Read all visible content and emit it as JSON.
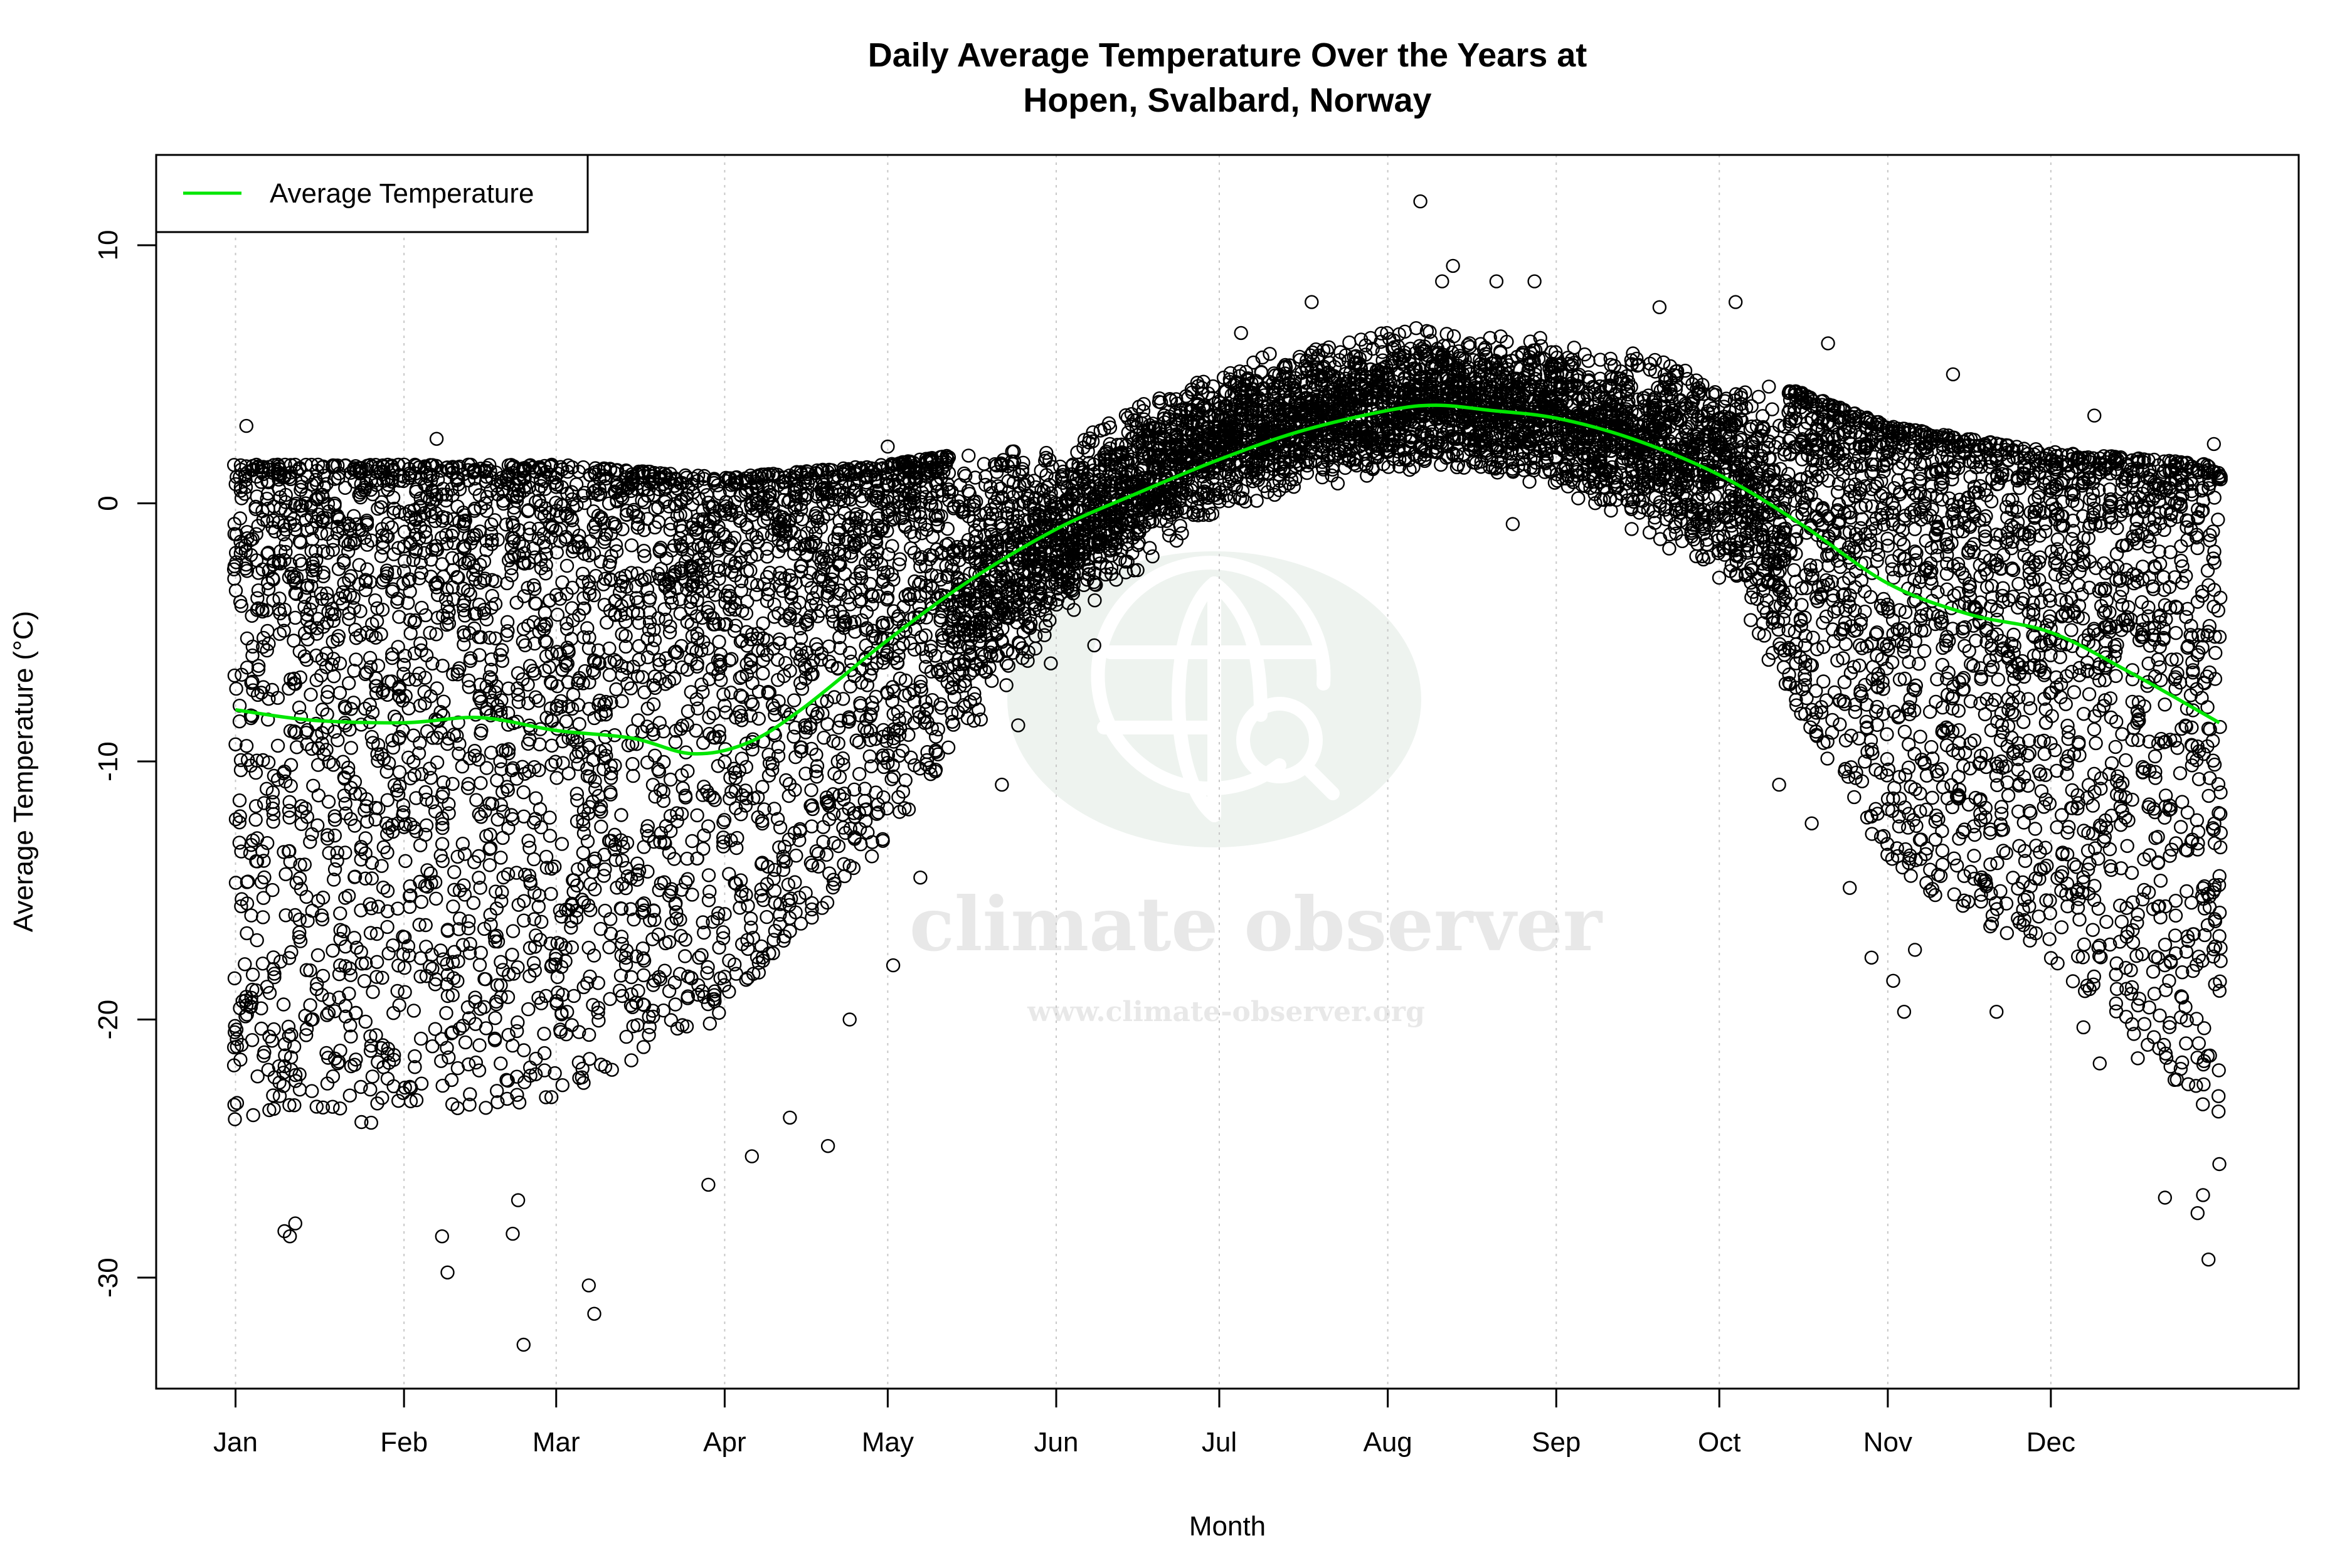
{
  "chart_data": {
    "type": "scatter",
    "title": "Daily Average Temperature Over the Years at",
    "subtitle": "Hopen, Svalbard, Norway",
    "xlabel": "Month",
    "ylabel": "Average Temperature (°C)",
    "xlim": [
      -13.6,
      380.6
    ],
    "ylim": [
      -34.3,
      13.5
    ],
    "grid": "vertical dotted at month ticks",
    "legend_placement": "top-left",
    "x_ticks": [
      {
        "day": 1,
        "label": "Jan"
      },
      {
        "day": 32,
        "label": "Feb"
      },
      {
        "day": 60,
        "label": "Mar"
      },
      {
        "day": 91,
        "label": "Apr"
      },
      {
        "day": 121,
        "label": "May"
      },
      {
        "day": 152,
        "label": "Jun"
      },
      {
        "day": 182,
        "label": "Jul"
      },
      {
        "day": 213,
        "label": "Aug"
      },
      {
        "day": 244,
        "label": "Sep"
      },
      {
        "day": 274,
        "label": "Oct"
      },
      {
        "day": 305,
        "label": "Nov"
      },
      {
        "day": 335,
        "label": "Dec"
      }
    ],
    "y_ticks": [
      10,
      0,
      -10,
      -20,
      -30
    ],
    "colors": {
      "average_line": "#00e600",
      "points": "#000000",
      "watermark_circle": "#eef3ef",
      "watermark_text": "#e8e8e8"
    },
    "series": [
      {
        "name": "Average Temperature",
        "kind": "line",
        "x": [
          1,
          15,
          32,
          46,
          60,
          74,
          85,
          95,
          105,
          121,
          136,
          152,
          167,
          182,
          197,
          213,
          222,
          232,
          244,
          258,
          274,
          289,
          305,
          320,
          335,
          350,
          366
        ],
        "y": [
          -8.0,
          -8.4,
          -8.5,
          -8.3,
          -8.8,
          -9.1,
          -9.7,
          -9.3,
          -8.0,
          -5.3,
          -3.0,
          -1.0,
          0.4,
          1.7,
          2.8,
          3.6,
          3.8,
          3.6,
          3.3,
          2.5,
          1.1,
          -0.8,
          -3.1,
          -4.3,
          -5.0,
          -6.6,
          -8.5
        ]
      },
      {
        "kind": "points",
        "daily_range_by_day": [
          {
            "day": 1,
            "low": -24,
            "high": 1.5
          },
          {
            "day": 32,
            "low": -24,
            "high": 1.5
          },
          {
            "day": 60,
            "low": -23,
            "high": 1.5
          },
          {
            "day": 91,
            "low": -20,
            "high": 1.0
          },
          {
            "day": 121,
            "low": -13,
            "high": 1.5
          },
          {
            "day": 152,
            "low": -5,
            "high": 2.5
          },
          {
            "day": 182,
            "low": -0.5,
            "high": 5.5
          },
          {
            "day": 213,
            "low": 1,
            "high": 7
          },
          {
            "day": 244,
            "low": 0.5,
            "high": 6.5
          },
          {
            "day": 274,
            "low": -3,
            "high": 5.5
          },
          {
            "day": 305,
            "low": -14,
            "high": 3
          },
          {
            "day": 335,
            "low": -18,
            "high": 2
          },
          {
            "day": 366,
            "low": -24,
            "high": 1.5
          }
        ],
        "extremes": [
          {
            "x": 219,
            "y": 11.7
          },
          {
            "x": 225,
            "y": 9.2
          },
          {
            "x": 223,
            "y": 8.6
          },
          {
            "x": 233,
            "y": 8.6
          },
          {
            "x": 240,
            "y": 8.6
          },
          {
            "x": 199,
            "y": 7.8
          },
          {
            "x": 277,
            "y": 7.8
          },
          {
            "x": 263,
            "y": 7.6
          },
          {
            "x": 186,
            "y": 6.6
          },
          {
            "x": 3,
            "y": 3.0
          },
          {
            "x": 38,
            "y": 2.5
          },
          {
            "x": 121,
            "y": 2.2
          },
          {
            "x": 365,
            "y": 2.3
          },
          {
            "x": 294,
            "y": 6.2
          },
          {
            "x": 317,
            "y": 5.0
          },
          {
            "x": 343,
            "y": 3.4
          },
          {
            "x": 54,
            "y": -32.6
          },
          {
            "x": 66,
            "y": -30.3
          },
          {
            "x": 67,
            "y": -31.4
          },
          {
            "x": 40,
            "y": -29.8
          },
          {
            "x": 39,
            "y": -28.4
          },
          {
            "x": 10,
            "y": -28.2
          },
          {
            "x": 12,
            "y": -27.9
          },
          {
            "x": 11,
            "y": -28.4
          },
          {
            "x": 53,
            "y": -27.0
          },
          {
            "x": 52,
            "y": -28.3
          },
          {
            "x": 364,
            "y": -29.3
          },
          {
            "x": 362,
            "y": -27.5
          },
          {
            "x": 363,
            "y": -26.8
          },
          {
            "x": 366,
            "y": -25.6
          },
          {
            "x": 356,
            "y": -26.9
          },
          {
            "x": 88,
            "y": -26.4
          },
          {
            "x": 96,
            "y": -25.3
          },
          {
            "x": 103,
            "y": -23.8
          },
          {
            "x": 110,
            "y": -24.9
          },
          {
            "x": 114,
            "y": -20.0
          },
          {
            "x": 122,
            "y": -17.9
          },
          {
            "x": 127,
            "y": -14.5
          },
          {
            "x": 142,
            "y": -10.9
          },
          {
            "x": 145,
            "y": -8.6
          },
          {
            "x": 151,
            "y": -6.2
          },
          {
            "x": 159,
            "y": -5.5
          },
          {
            "x": 236,
            "y": -0.8
          },
          {
            "x": 285,
            "y": -10.9
          },
          {
            "x": 291,
            "y": -12.4
          },
          {
            "x": 298,
            "y": -14.9
          },
          {
            "x": 302,
            "y": -17.6
          },
          {
            "x": 306,
            "y": -18.5
          },
          {
            "x": 308,
            "y": -19.7
          },
          {
            "x": 310,
            "y": -17.3
          },
          {
            "x": 325,
            "y": -19.7
          },
          {
            "x": 341,
            "y": -20.3
          },
          {
            "x": 344,
            "y": -21.7
          },
          {
            "x": 351,
            "y": -21.5
          }
        ]
      }
    ],
    "legend": [
      {
        "label": "Average Temperature",
        "color": "#00e600",
        "symbol": "line"
      }
    ]
  },
  "watermark": {
    "icon": "globe-magnifier-icon",
    "brand": "climate observer",
    "url": "www.climate-observer.org"
  }
}
